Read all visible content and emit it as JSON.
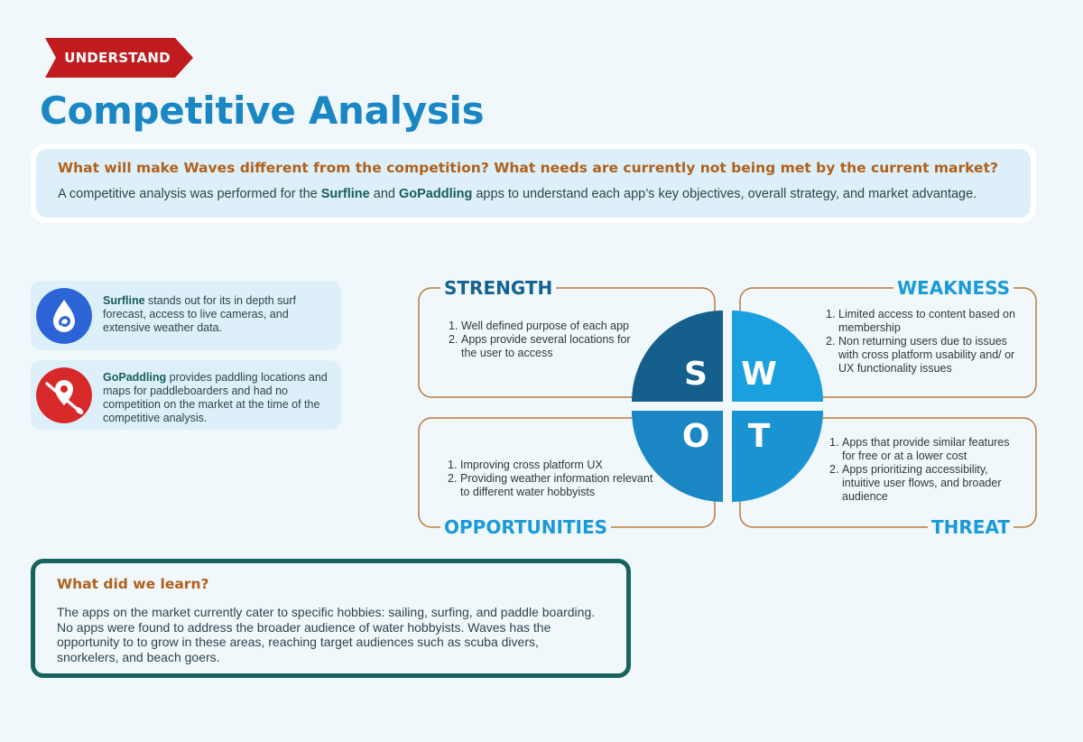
{
  "tag_label": "UNDERSTAND",
  "title": "Competitive Analysis",
  "intro": {
    "question": "What will make Waves different from the competition? What needs are currently not being met by the current market?",
    "desc_prefix": "A competitive analysis was performed for the ",
    "app1": "Surfline",
    "desc_and": " and ",
    "app2": "GoPaddling",
    "desc_suffix": " apps to understand each app’s key objectives, overall strategy, and market advantage."
  },
  "apps": [
    {
      "name": "Surfline",
      "text": " stands out for its in depth surf forecast, access to live cameras, and extensive weather data.",
      "icon": "surfline-logo-icon",
      "color": "#2c64d8"
    },
    {
      "name": "GoPaddling",
      "text": " provides paddling locations and maps for paddleboarders and had no competition on the market at the time of the competitive analysis.",
      "icon": "gopaddling-logo-icon",
      "color": "#d7292a"
    }
  ],
  "swot": {
    "letters": {
      "s": "S",
      "w": "W",
      "o": "O",
      "t": "T"
    },
    "strength": {
      "label": "STRENGTH",
      "items": [
        "Well defined purpose of each app",
        "Apps provide several locations for the user to access"
      ]
    },
    "weakness": {
      "label": "WEAKNESS",
      "items": [
        "Limited access to content based on membership",
        "Non returning users due to issues with cross platform usability and/ or UX functionality issues"
      ]
    },
    "opportunities": {
      "label": "OPPORTUNITIES",
      "items": [
        "Improving cross platform UX",
        "Providing weather information relevant to different water hobbyists"
      ]
    },
    "threat": {
      "label": "THREAT",
      "items": [
        "Apps that provide similar features for free or at a lower cost",
        "Apps prioritizing accessibility, intuitive user flows, and broader audience"
      ]
    },
    "colors": {
      "s": "#155f8c",
      "w": "#1ba0df",
      "o": "#1a86c4",
      "t": "#1a93d2",
      "border": "#b97a3a"
    }
  },
  "learn": {
    "title": "What did we learn?",
    "body": "The apps on the market currently cater to specific hobbies: sailing, surfing, and paddle boarding. No apps were found to address the broader audience of water hobbyists. Waves has the opportunity to to grow in these areas, reaching target audiences such as scuba divers, snorkelers, and beach goers."
  }
}
